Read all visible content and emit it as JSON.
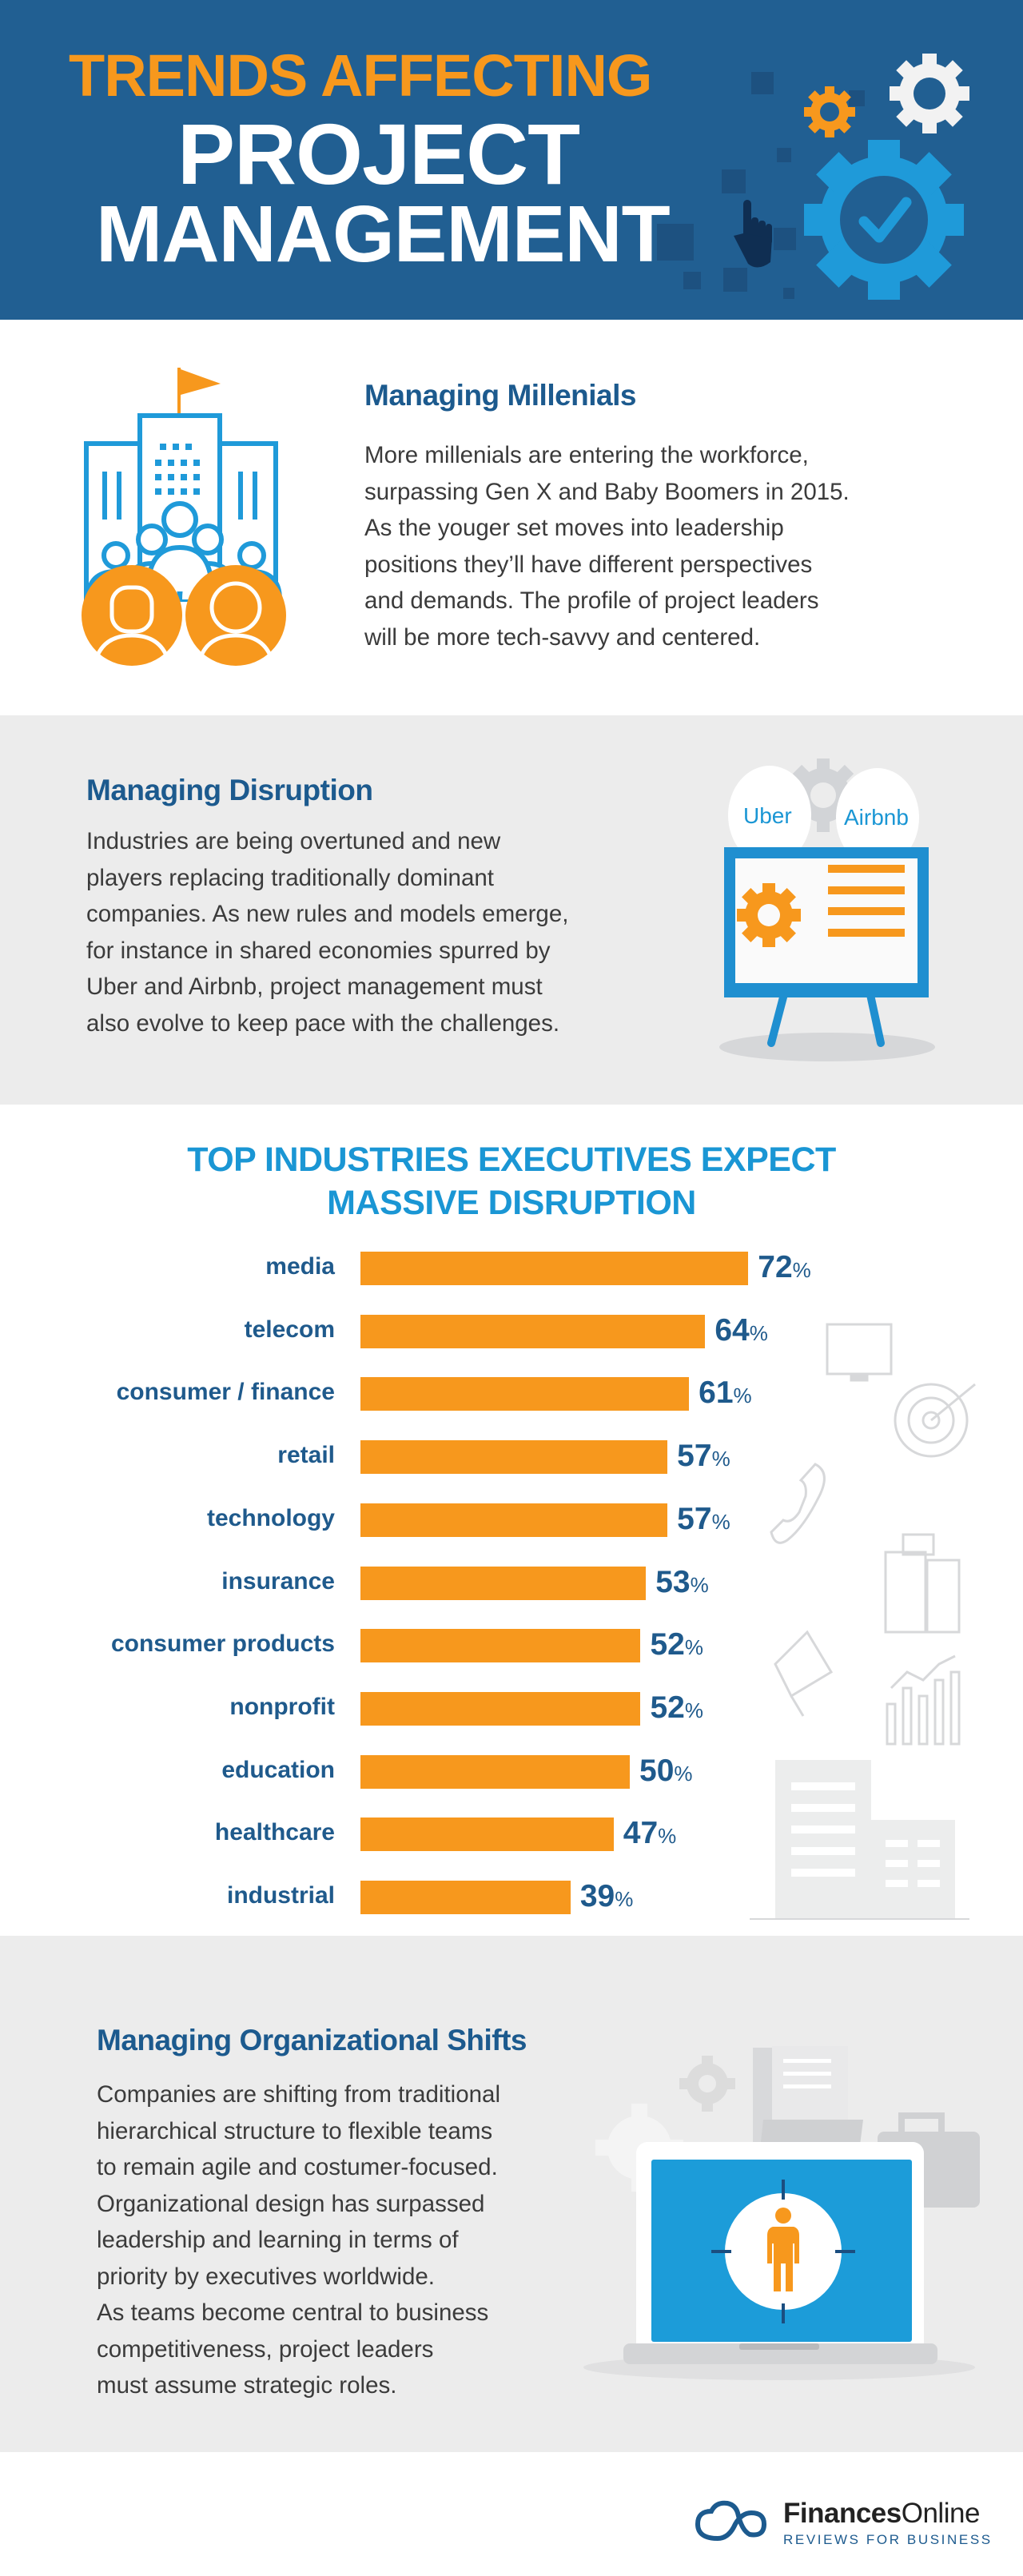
{
  "header": {
    "title_line1": "TRENDS AFFECTING",
    "title_line2": "PROJECT",
    "title_line3": "MANAGEMENT"
  },
  "millenials": {
    "heading": "Managing Millenials",
    "body": "More millenials are entering the workforce,\nsurpassing Gen X and Baby Boomers in 2015.\nAs the youger set moves into leadership\npositions they’ll have different perspectives\nand demands.  The profile of project leaders\nwill be more tech-savvy and centered."
  },
  "disruption": {
    "heading": "Managing Disruption",
    "body": "Industries are being overtuned and new\nplayers replacing traditionally dominant\ncompanies. As new rules and models emerge,\nfor instance in shared economies spurred by\nUber and Airbnb, project management must\nalso evolve to keep pace with the challenges.",
    "bubble_left": "Uber",
    "bubble_right": "Airbnb"
  },
  "chart_data": {
    "type": "bar",
    "orientation": "horizontal",
    "title": "TOP INDUSTRIES EXECUTIVES EXPECT MASSIVE DISRUPTION",
    "title_line1": "TOP INDUSTRIES EXECUTIVES EXPECT",
    "title_line2": "MASSIVE DISRUPTION",
    "categories": [
      "media",
      "telecom",
      "consumer / finance",
      "retail",
      "technology",
      "insurance",
      "consumer products",
      "nonprofit",
      "education",
      "healthcare",
      "industrial"
    ],
    "values": [
      72,
      64,
      61,
      57,
      57,
      53,
      52,
      52,
      50,
      47,
      39
    ],
    "value_labels": [
      "72",
      "64",
      "61",
      "57",
      "57",
      "53",
      "52",
      "52",
      "50",
      "47",
      "39"
    ],
    "unit": "%",
    "xlim": [
      0,
      72
    ],
    "grid": false,
    "bar_color": "#f7981d"
  },
  "org_shifts": {
    "heading": "Managing Organizational Shifts",
    "body": "Companies are shifting from traditional\nhierarchical structure to flexible teams\nto remain agile and costumer-focused.\nOrganizational design has surpassed\nleadership and learning in terms of\npriority by executives worldwide.\nAs teams become central to business\ncompetitiveness, project leaders\nmust assume strategic roles."
  },
  "footer": {
    "brand_bold": "Finances",
    "brand_light": "Online",
    "tagline": "REVIEWS FOR BUSINESS"
  },
  "colors": {
    "header_bg": "#215f92",
    "accent_orange": "#f7981d",
    "heading_blue": "#1c5a8e",
    "chart_title_blue": "#1a96d4",
    "section_gray": "#ececec"
  }
}
